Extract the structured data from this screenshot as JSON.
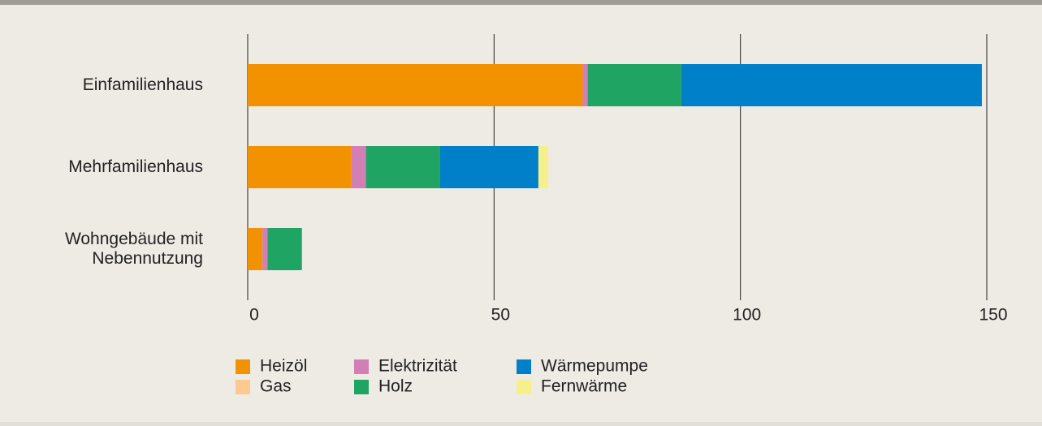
{
  "chart_data": {
    "type": "bar",
    "orientation": "horizontal",
    "stacked": true,
    "categories": [
      "Einfamilienhaus",
      "Mehrfamilienhaus",
      "Wohngebäude mit\nNebennutzung"
    ],
    "series": [
      {
        "name": "Heizöl",
        "color": "#f39200",
        "values": [
          68,
          21,
          3
        ]
      },
      {
        "name": "Gas",
        "color": "#fdc98f",
        "values": [
          0,
          0,
          0
        ]
      },
      {
        "name": "Elektrizität",
        "color": "#d17fb5",
        "values": [
          1,
          3,
          1
        ]
      },
      {
        "name": "Holz",
        "color": "#1fa463",
        "values": [
          19,
          15,
          7
        ]
      },
      {
        "name": "Wärmepumpe",
        "color": "#0080c9",
        "values": [
          61,
          20,
          0
        ]
      },
      {
        "name": "Fernwärme",
        "color": "#f5f08c",
        "values": [
          0,
          2,
          0
        ]
      }
    ],
    "xlim": [
      0,
      150
    ],
    "xticks": [
      0,
      50,
      100,
      150
    ],
    "grid": true
  }
}
